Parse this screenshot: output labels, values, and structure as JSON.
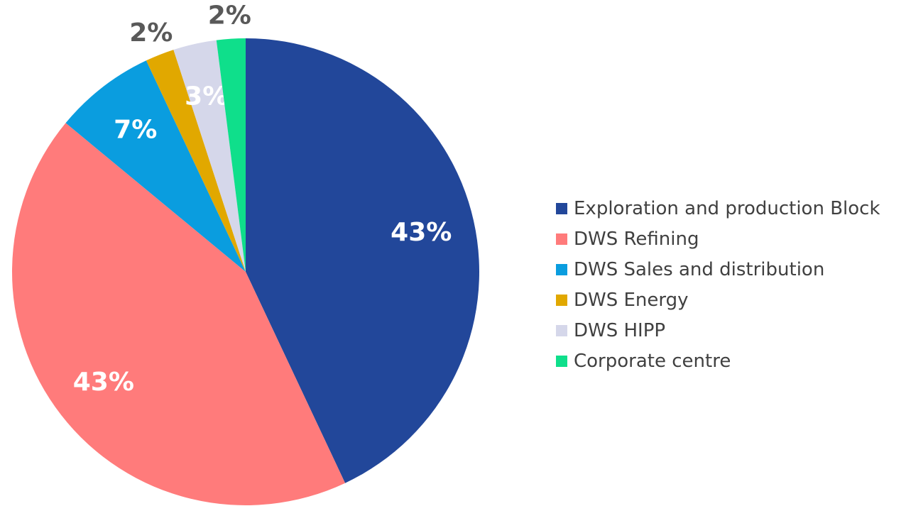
{
  "chart_data": {
    "type": "pie",
    "categories": [
      "Exploration and production Block",
      "DWS Refining",
      "DWS Sales and distribution",
      "DWS Energy",
      "DWS HIPP",
      "Corporate centre"
    ],
    "values": [
      43,
      43,
      7,
      2,
      3,
      2
    ],
    "value_labels": [
      "43%",
      "43%",
      "7%",
      "2%",
      "3%",
      "2%"
    ],
    "colors": [
      "#22479a",
      "#ff7b7b",
      "#0a9ddf",
      "#e1a800",
      "#d5d7ea",
      "#0fdf8b"
    ],
    "legend": "right"
  }
}
